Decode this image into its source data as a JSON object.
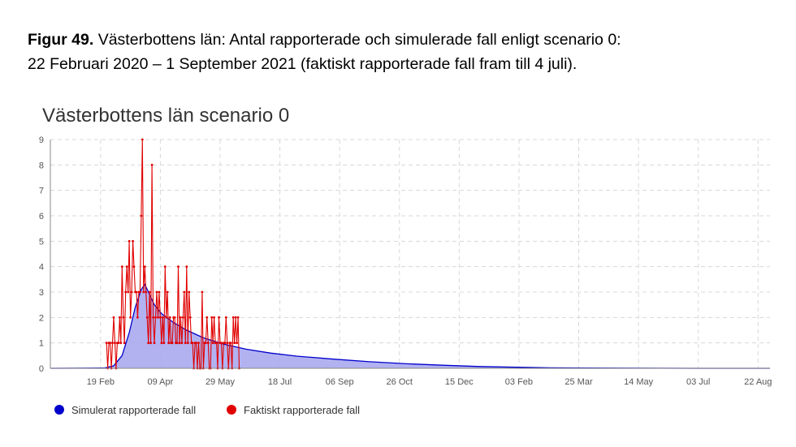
{
  "caption": {
    "label": "Figur 49.",
    "line1": " Västerbottens län: Antal rapporterade och simulerade fall enligt scenario 0:",
    "line2": "22 Februari 2020 – 1 September 2021 (faktiskt rapporterade fall fram till 4 juli)."
  },
  "chart_data": {
    "type": "line",
    "title": "Västerbottens län scenario 0",
    "xlabel": "",
    "ylabel": "",
    "x_range": [
      "2020-01-08",
      "2021-09-01"
    ],
    "ylim": [
      0,
      9
    ],
    "y_ticks": [
      0,
      1,
      2,
      3,
      4,
      5,
      6,
      7,
      8,
      9
    ],
    "x_ticks": [
      {
        "date": "2020-02-19",
        "label": "19 Feb"
      },
      {
        "date": "2020-04-09",
        "label": "09 Apr"
      },
      {
        "date": "2020-05-29",
        "label": "29 May"
      },
      {
        "date": "2020-07-18",
        "label": "18 Jul"
      },
      {
        "date": "2020-09-06",
        "label": "06 Sep"
      },
      {
        "date": "2020-10-26",
        "label": "26 Oct"
      },
      {
        "date": "2020-12-15",
        "label": "15 Dec"
      },
      {
        "date": "2021-02-03",
        "label": "03 Feb"
      },
      {
        "date": "2021-03-25",
        "label": "25 Mar"
      },
      {
        "date": "2021-05-14",
        "label": "14 May"
      },
      {
        "date": "2021-07-03",
        "label": "03 Jul"
      },
      {
        "date": "2021-08-22",
        "label": "22 Aug"
      }
    ],
    "grid": true,
    "legend_position": "bottom-left",
    "series": [
      {
        "name": "Simulerat rapporterade fall",
        "kind": "area",
        "color": "#0000cc",
        "fill": "#aaaaf0",
        "points": [
          [
            "2020-01-08",
            0
          ],
          [
            "2020-02-22",
            0.01
          ],
          [
            "2020-03-01",
            0.1
          ],
          [
            "2020-03-08",
            0.5
          ],
          [
            "2020-03-14",
            1.4
          ],
          [
            "2020-03-19",
            2.4
          ],
          [
            "2020-03-24",
            3.1
          ],
          [
            "2020-03-27",
            3.3
          ],
          [
            "2020-03-30",
            3.0
          ],
          [
            "2020-04-04",
            2.5
          ],
          [
            "2020-04-10",
            2.15
          ],
          [
            "2020-04-20",
            1.8
          ],
          [
            "2020-05-01",
            1.5
          ],
          [
            "2020-05-15",
            1.2
          ],
          [
            "2020-06-01",
            0.95
          ],
          [
            "2020-06-20",
            0.75
          ],
          [
            "2020-07-10",
            0.6
          ],
          [
            "2020-08-01",
            0.48
          ],
          [
            "2020-09-01",
            0.36
          ],
          [
            "2020-10-01",
            0.26
          ],
          [
            "2020-11-01",
            0.18
          ],
          [
            "2020-12-01",
            0.12
          ],
          [
            "2021-01-01",
            0.07
          ],
          [
            "2021-02-01",
            0.04
          ],
          [
            "2021-03-01",
            0.02
          ],
          [
            "2021-04-01",
            0.01
          ],
          [
            "2021-05-01",
            0.005
          ],
          [
            "2021-06-01",
            0.002
          ],
          [
            "2021-07-01",
            0
          ],
          [
            "2021-09-01",
            0
          ]
        ]
      },
      {
        "name": "Faktiskt rapporterade fall",
        "kind": "line",
        "color": "#e00000",
        "start": "2020-02-24",
        "values": [
          1,
          0,
          1,
          1,
          0,
          1,
          2,
          1,
          0,
          1,
          1,
          2,
          1,
          4,
          2,
          1,
          3,
          4,
          3,
          5,
          2,
          3,
          5,
          4,
          3,
          3,
          2,
          3,
          3,
          6,
          9,
          3,
          4,
          3,
          2,
          1,
          3,
          1,
          8,
          2,
          1,
          2,
          3,
          2,
          3,
          2,
          1,
          2,
          1,
          4,
          2,
          3,
          1,
          2,
          1,
          1,
          2,
          2,
          1,
          1,
          4,
          1,
          2,
          1,
          2,
          3,
          1,
          4,
          1,
          3,
          2,
          1,
          1,
          0,
          1,
          1,
          0,
          1,
          0,
          0,
          3,
          0,
          1,
          1,
          2,
          1,
          0,
          0,
          2,
          1,
          2,
          1,
          1,
          0,
          2,
          1,
          1,
          0,
          1,
          1,
          2,
          1,
          0,
          1,
          1,
          0,
          2,
          1,
          2,
          1,
          2,
          0
        ]
      }
    ]
  }
}
